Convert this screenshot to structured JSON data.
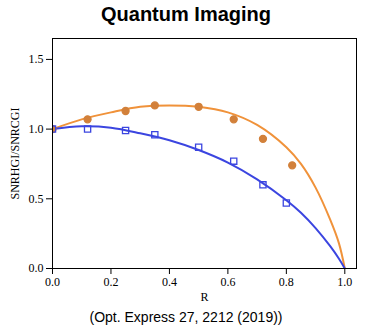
{
  "chart_data": {
    "type": "line",
    "title": "Quantum Imaging",
    "caption": "(Opt. Express 27, 2212 (2019))",
    "x_label": "R",
    "y_label": "SNRHGI/SNRCGI",
    "xlim": [
      0,
      1.04
    ],
    "ylim": [
      0,
      1.65
    ],
    "xticks": [
      {
        "value": 0,
        "label": "0.0"
      },
      {
        "value": 0.2,
        "label": "0.2"
      },
      {
        "value": 0.4,
        "label": "0.4"
      },
      {
        "value": 0.6,
        "label": "0.6"
      },
      {
        "value": 0.8,
        "label": "0.8"
      },
      {
        "value": 1,
        "label": "1.0"
      }
    ],
    "yticks": [
      {
        "value": 0,
        "label": "0.0"
      },
      {
        "value": 0.5,
        "label": "0.5"
      },
      {
        "value": 1,
        "label": "1.0"
      },
      {
        "value": 1.5,
        "label": "1.5"
      }
    ],
    "grid": false,
    "series": [
      {
        "type": "line",
        "color": "#f0923a",
        "line_style": "solid",
        "x": [
          0,
          0.1,
          0.2,
          0.3,
          0.4,
          0.5,
          0.6,
          0.7,
          0.8,
          0.85,
          0.9,
          0.95,
          0.98,
          1.0
        ],
        "values": [
          1.0,
          1.07,
          1.12,
          1.16,
          1.17,
          1.16,
          1.12,
          1.03,
          0.87,
          0.75,
          0.58,
          0.35,
          0.18,
          0
        ]
      },
      {
        "type": "line",
        "color": "#3b45e0",
        "line_style": "solid",
        "x": [
          0,
          0.1,
          0.2,
          0.3,
          0.4,
          0.5,
          0.6,
          0.7,
          0.8,
          0.85,
          0.9,
          0.95,
          0.98,
          1.0
        ],
        "values": [
          1.0,
          1.02,
          1.01,
          0.97,
          0.92,
          0.85,
          0.76,
          0.64,
          0.49,
          0.4,
          0.29,
          0.16,
          0.07,
          0
        ]
      },
      {
        "type": "scatter",
        "color": "#d2803a",
        "marker": "filled_circle",
        "x": [
          0,
          0.12,
          0.25,
          0.35,
          0.5,
          0.62,
          0.72,
          0.82
        ],
        "values": [
          1.0,
          1.07,
          1.13,
          1.17,
          1.16,
          1.07,
          0.93,
          0.74
        ]
      },
      {
        "type": "scatter",
        "color": "#3b45e0",
        "marker": "open_square",
        "x": [
          0,
          0.12,
          0.25,
          0.35,
          0.5,
          0.62,
          0.72,
          0.8
        ],
        "values": [
          1.0,
          1.0,
          0.99,
          0.96,
          0.87,
          0.77,
          0.6,
          0.47
        ]
      }
    ]
  }
}
